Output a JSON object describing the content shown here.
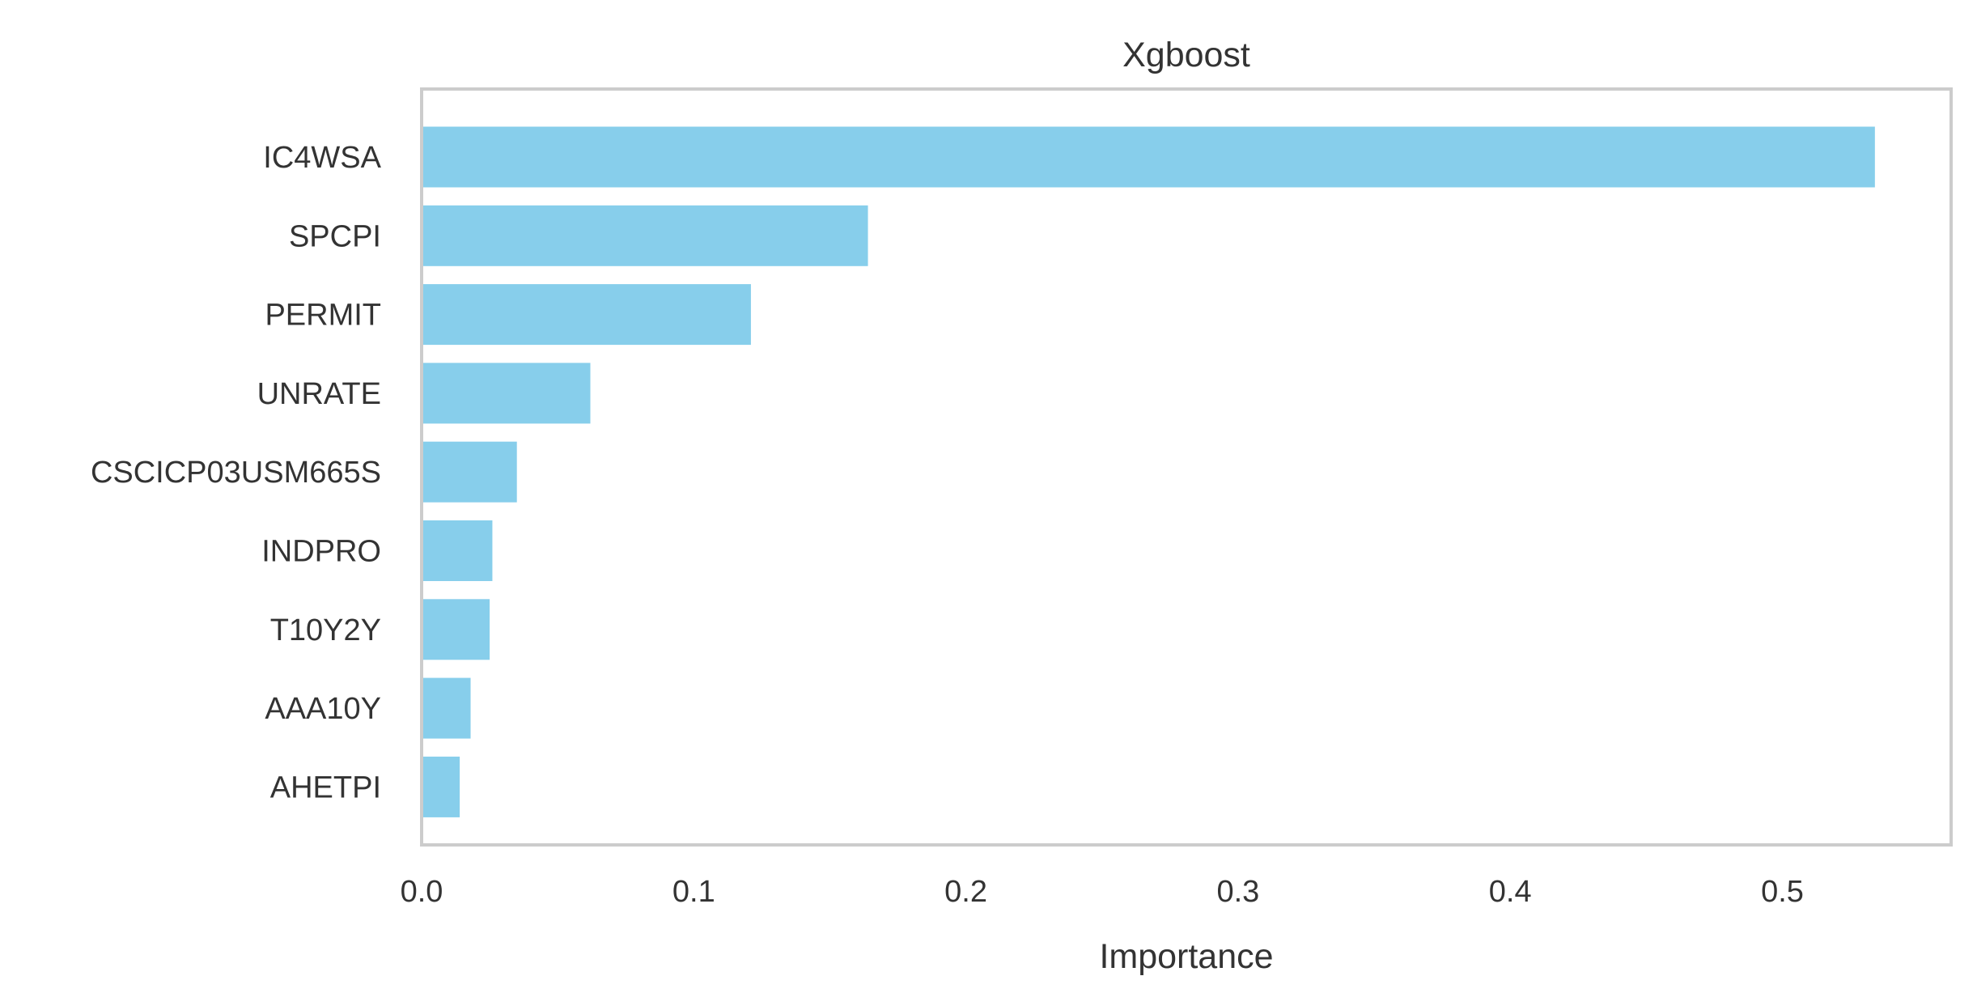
{
  "chart_data": {
    "type": "bar",
    "orientation": "horizontal",
    "title": "Xgboost",
    "xlabel": "Importance",
    "ylabel": "",
    "categories": [
      "IC4WSA",
      "SPCPI",
      "PERMIT",
      "UNRATE",
      "CSCICP03USM665S",
      "INDPRO",
      "T10Y2Y",
      "AAA10Y",
      "AHETPI"
    ],
    "values": [
      0.534,
      0.164,
      0.121,
      0.062,
      0.035,
      0.026,
      0.025,
      0.018,
      0.014
    ],
    "xlim": [
      0,
      0.562
    ],
    "xticks": [
      0.0,
      0.1,
      0.2,
      0.3,
      0.4,
      0.5
    ],
    "xtick_labels": [
      "0.0",
      "0.1",
      "0.2",
      "0.3",
      "0.4",
      "0.5"
    ],
    "grid": false,
    "colors": {
      "bar": "#87ceeb",
      "frame": "#cccccc",
      "text": "#333333"
    }
  }
}
